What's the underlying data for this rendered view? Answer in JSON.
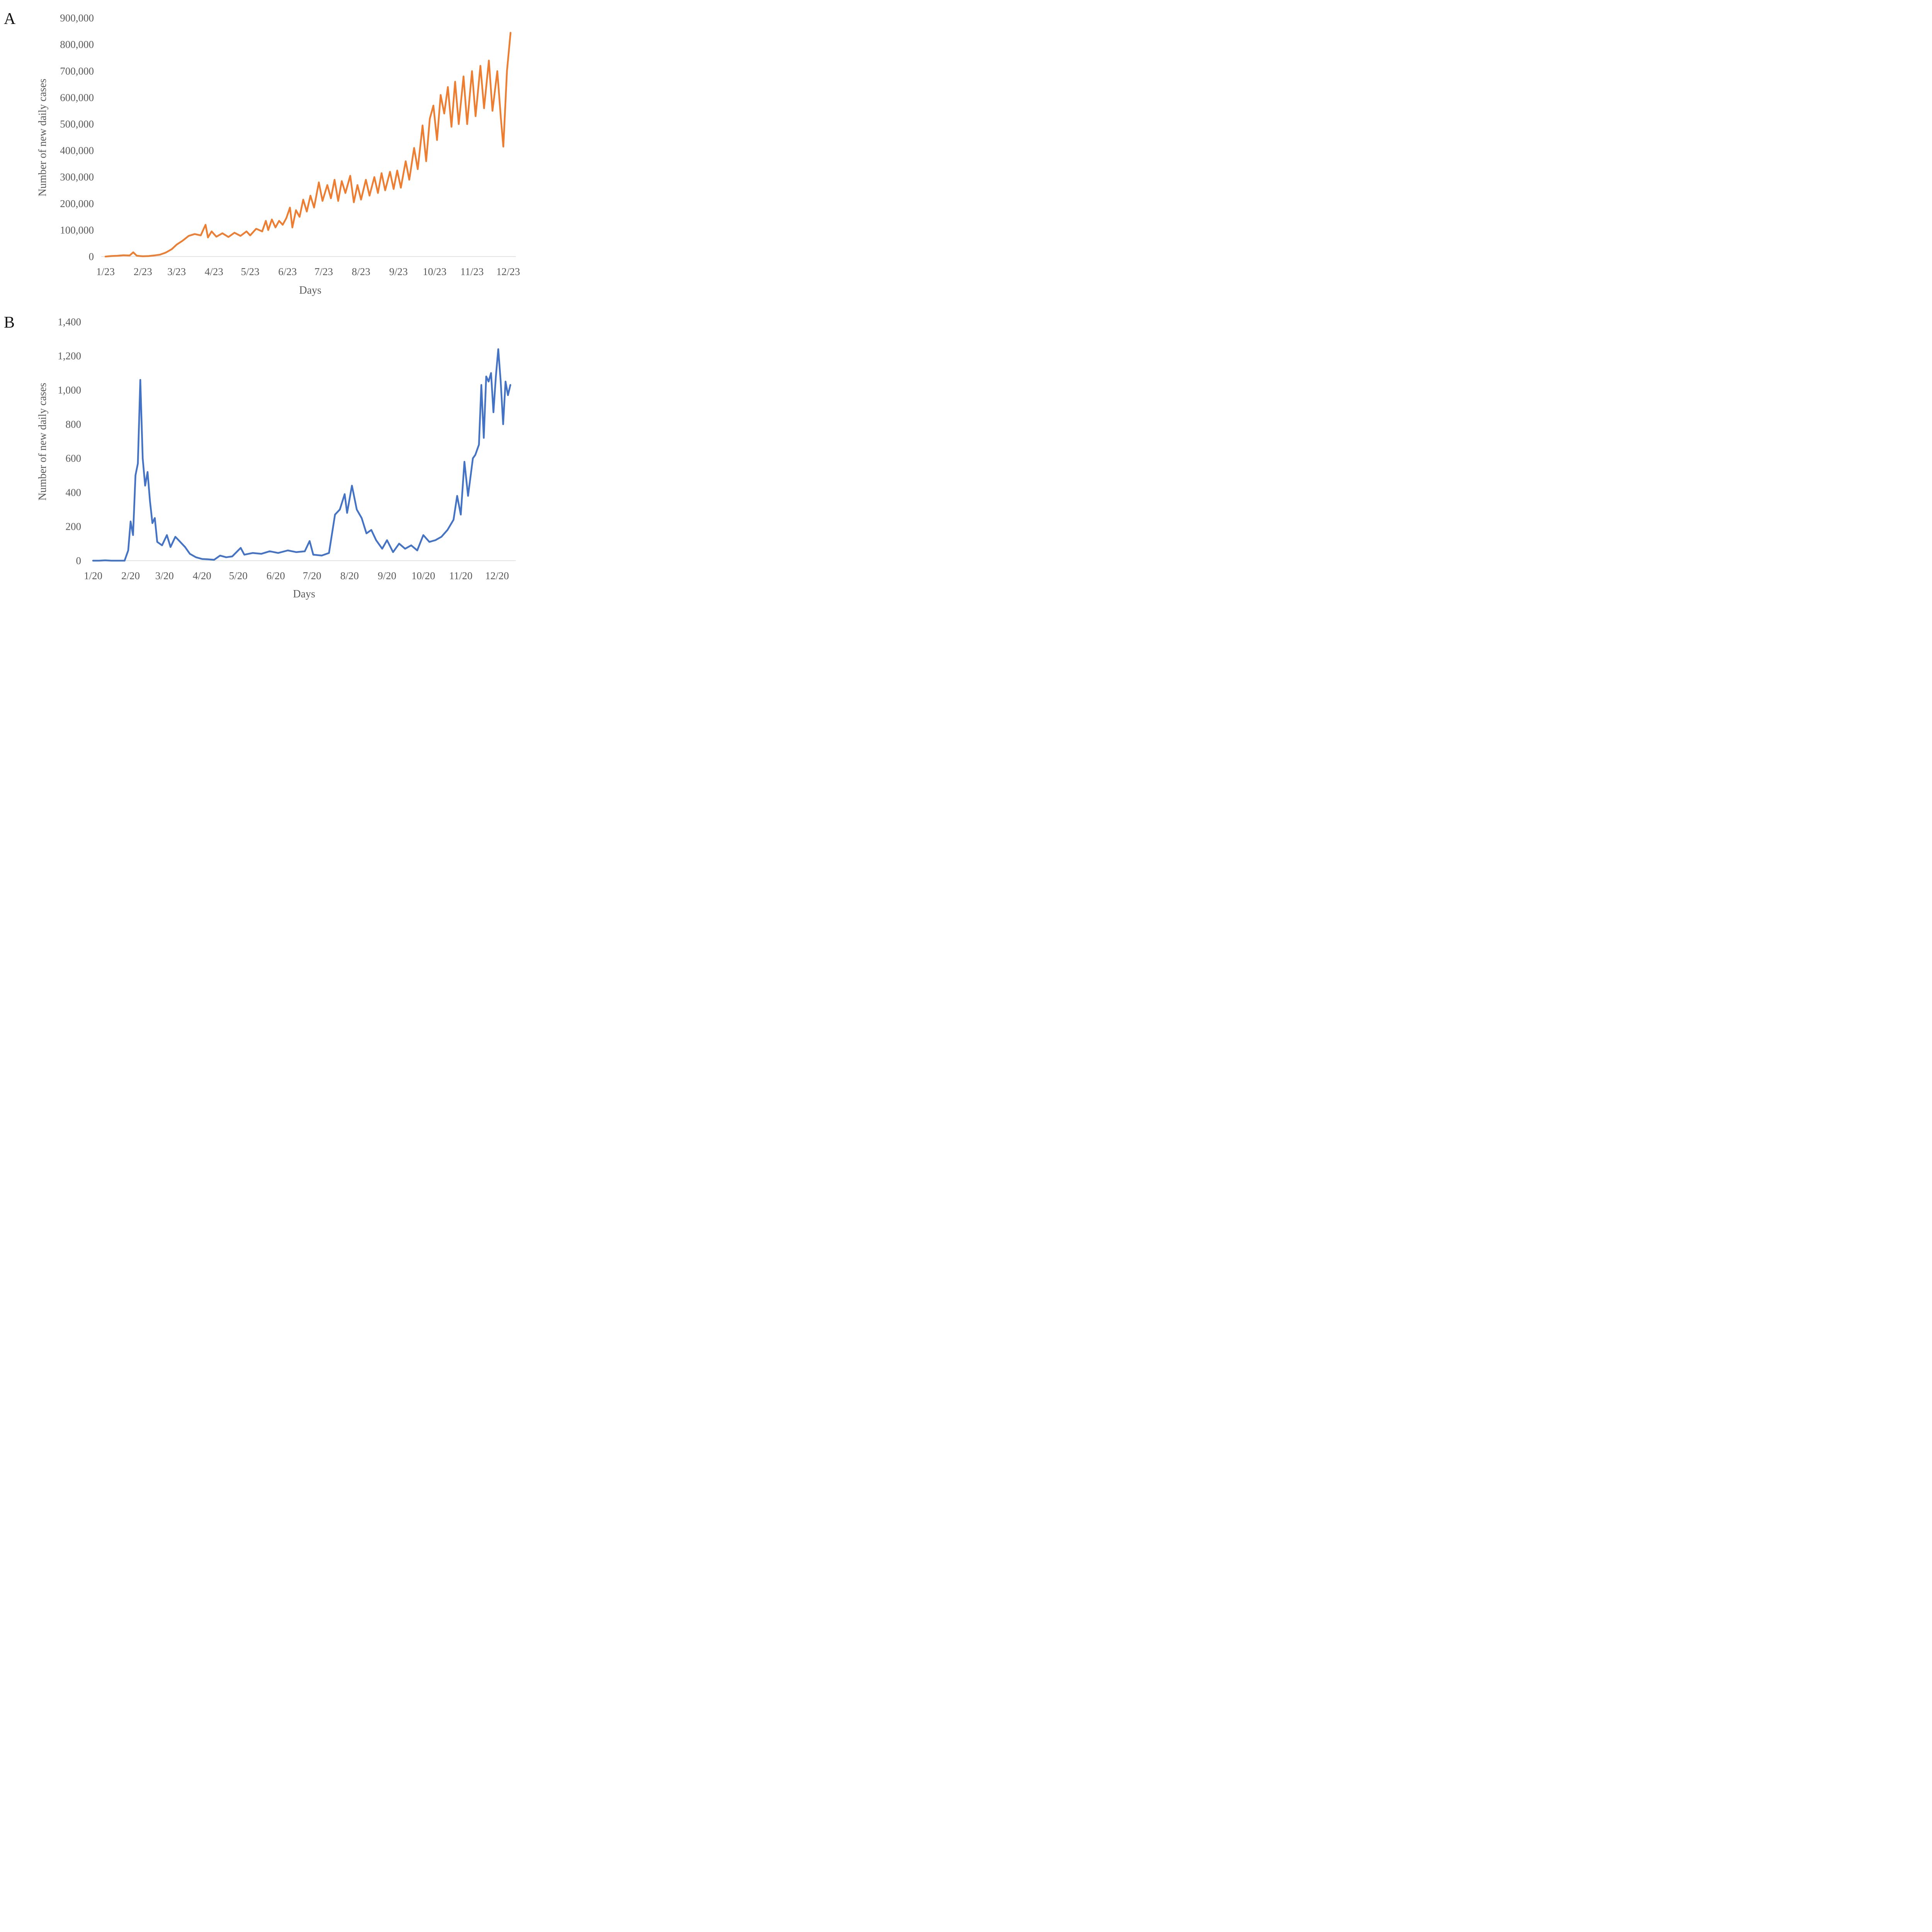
{
  "panels": [
    {
      "letter": "A",
      "chart_data": {
        "type": "line",
        "title": "",
        "xlabel": "Days",
        "ylabel": "Number of new daily cases",
        "x_tick_labels": [
          "1/23",
          "2/23",
          "3/23",
          "4/23",
          "5/23",
          "6/23",
          "7/23",
          "8/23",
          "9/23",
          "10/23",
          "11/23",
          "12/23"
        ],
        "y_tick_labels": [
          "0",
          "100,000",
          "200,000",
          "300,000",
          "400,000",
          "500,000",
          "600,000",
          "700,000",
          "800,000",
          "900,000"
        ],
        "ylim": [
          0,
          900000
        ],
        "grid": false,
        "legend": "none",
        "series": [
          {
            "color": "#ED7D31",
            "points": [
              [
                "1/23",
                0
              ],
              [
                "1/28",
                2000
              ],
              [
                "2/2",
                3000
              ],
              [
                "2/7",
                5000
              ],
              [
                "2/12",
                4000
              ],
              [
                "2/15",
                16000
              ],
              [
                "2/18",
                3000
              ],
              [
                "2/23",
                1000
              ],
              [
                "2/28",
                2000
              ],
              [
                "3/4",
                4000
              ],
              [
                "3/9",
                7000
              ],
              [
                "3/14",
                15000
              ],
              [
                "3/19",
                28000
              ],
              [
                "3/23",
                45000
              ],
              [
                "3/28",
                60000
              ],
              [
                "4/2",
                78000
              ],
              [
                "4/7",
                85000
              ],
              [
                "4/12",
                80000
              ],
              [
                "4/16",
                120000
              ],
              [
                "4/18",
                72000
              ],
              [
                "4/21",
                95000
              ],
              [
                "4/25",
                75000
              ],
              [
                "4/30",
                88000
              ],
              [
                "5/5",
                74000
              ],
              [
                "5/10",
                90000
              ],
              [
                "5/15",
                78000
              ],
              [
                "5/20",
                95000
              ],
              [
                "5/23",
                80000
              ],
              [
                "5/28",
                105000
              ],
              [
                "6/2",
                95000
              ],
              [
                "6/5",
                135000
              ],
              [
                "6/7",
                100000
              ],
              [
                "6/10",
                140000
              ],
              [
                "6/13",
                110000
              ],
              [
                "6/16",
                135000
              ],
              [
                "6/19",
                120000
              ],
              [
                "6/22",
                145000
              ],
              [
                "6/25",
                185000
              ],
              [
                "6/27",
                110000
              ],
              [
                "6/30",
                175000
              ],
              [
                "7/3",
                150000
              ],
              [
                "7/6",
                215000
              ],
              [
                "7/9",
                170000
              ],
              [
                "7/12",
                230000
              ],
              [
                "7/15",
                185000
              ],
              [
                "7/19",
                280000
              ],
              [
                "7/22",
                210000
              ],
              [
                "7/26",
                270000
              ],
              [
                "7/29",
                220000
              ],
              [
                "8/1",
                290000
              ],
              [
                "8/4",
                210000
              ],
              [
                "8/7",
                285000
              ],
              [
                "8/10",
                240000
              ],
              [
                "8/14",
                305000
              ],
              [
                "8/17",
                205000
              ],
              [
                "8/20",
                270000
              ],
              [
                "8/23",
                215000
              ],
              [
                "8/27",
                290000
              ],
              [
                "8/30",
                230000
              ],
              [
                "9/3",
                300000
              ],
              [
                "9/6",
                240000
              ],
              [
                "9/9",
                315000
              ],
              [
                "9/12",
                250000
              ],
              [
                "9/16",
                320000
              ],
              [
                "9/19",
                255000
              ],
              [
                "9/22",
                325000
              ],
              [
                "9/25",
                260000
              ],
              [
                "9/29",
                360000
              ],
              [
                "10/2",
                290000
              ],
              [
                "10/6",
                410000
              ],
              [
                "10/9",
                330000
              ],
              [
                "10/13",
                495000
              ],
              [
                "10/16",
                360000
              ],
              [
                "10/19",
                520000
              ],
              [
                "10/22",
                570000
              ],
              [
                "10/25",
                440000
              ],
              [
                "10/28",
                610000
              ],
              [
                "10/31",
                540000
              ],
              [
                "11/3",
                640000
              ],
              [
                "11/6",
                490000
              ],
              [
                "11/9",
                660000
              ],
              [
                "11/12",
                500000
              ],
              [
                "11/16",
                680000
              ],
              [
                "11/19",
                500000
              ],
              [
                "11/23",
                700000
              ],
              [
                "11/26",
                530000
              ],
              [
                "11/30",
                720000
              ],
              [
                "12/3",
                560000
              ],
              [
                "12/7",
                740000
              ],
              [
                "12/10",
                550000
              ],
              [
                "12/14",
                700000
              ],
              [
                "12/17",
                520000
              ],
              [
                "12/19",
                415000
              ],
              [
                "12/22",
                700000
              ],
              [
                "12/25",
                845000
              ]
            ]
          }
        ]
      }
    },
    {
      "letter": "B",
      "chart_data": {
        "type": "line",
        "title": "",
        "xlabel": "Days",
        "ylabel": "Number of new daily cases",
        "x_tick_labels": [
          "1/20",
          "2/20",
          "3/20",
          "4/20",
          "5/20",
          "6/20",
          "7/20",
          "8/20",
          "9/20",
          "10/20",
          "11/20",
          "12/20"
        ],
        "y_tick_labels": [
          "0",
          "200",
          "400",
          "600",
          "800",
          "1,000",
          "1,200",
          "1,400"
        ],
        "ylim": [
          0,
          1400
        ],
        "grid": false,
        "legend": "none",
        "series": [
          {
            "color": "#4472C4",
            "points": [
              [
                "1/20",
                0
              ],
              [
                "1/25",
                0
              ],
              [
                "1/30",
                2
              ],
              [
                "2/4",
                0
              ],
              [
                "2/9",
                0
              ],
              [
                "2/15",
                0
              ],
              [
                "2/18",
                60
              ],
              [
                "2/20",
                230
              ],
              [
                "2/22",
                150
              ],
              [
                "2/24",
                500
              ],
              [
                "2/26",
                570
              ],
              [
                "2/28",
                1060
              ],
              [
                "3/2",
                600
              ],
              [
                "3/4",
                440
              ],
              [
                "3/6",
                520
              ],
              [
                "3/8",
                350
              ],
              [
                "3/10",
                220
              ],
              [
                "3/12",
                250
              ],
              [
                "3/14",
                110
              ],
              [
                "3/18",
                90
              ],
              [
                "3/22",
                150
              ],
              [
                "3/25",
                80
              ],
              [
                "3/29",
                140
              ],
              [
                "4/2",
                110
              ],
              [
                "4/6",
                80
              ],
              [
                "4/10",
                40
              ],
              [
                "4/15",
                20
              ],
              [
                "4/20",
                10
              ],
              [
                "4/25",
                8
              ],
              [
                "4/30",
                5
              ],
              [
                "5/5",
                30
              ],
              [
                "5/10",
                20
              ],
              [
                "5/15",
                25
              ],
              [
                "5/22",
                75
              ],
              [
                "5/25",
                35
              ],
              [
                "6/1",
                45
              ],
              [
                "6/8",
                40
              ],
              [
                "6/15",
                55
              ],
              [
                "6/22",
                45
              ],
              [
                "6/30",
                60
              ],
              [
                "7/7",
                50
              ],
              [
                "7/14",
                55
              ],
              [
                "7/18",
                115
              ],
              [
                "7/21",
                35
              ],
              [
                "7/28",
                30
              ],
              [
                "8/3",
                45
              ],
              [
                "8/8",
                270
              ],
              [
                "8/12",
                300
              ],
              [
                "8/16",
                390
              ],
              [
                "8/18",
                280
              ],
              [
                "8/22",
                440
              ],
              [
                "8/26",
                300
              ],
              [
                "8/30",
                250
              ],
              [
                "9/3",
                160
              ],
              [
                "9/7",
                180
              ],
              [
                "9/11",
                120
              ],
              [
                "9/16",
                70
              ],
              [
                "9/20",
                120
              ],
              [
                "9/25",
                50
              ],
              [
                "9/30",
                100
              ],
              [
                "10/5",
                70
              ],
              [
                "10/10",
                90
              ],
              [
                "10/15",
                60
              ],
              [
                "10/20",
                150
              ],
              [
                "10/25",
                110
              ],
              [
                "10/30",
                120
              ],
              [
                "11/4",
                140
              ],
              [
                "11/9",
                180
              ],
              [
                "11/14",
                240
              ],
              [
                "11/17",
                380
              ],
              [
                "11/20",
                270
              ],
              [
                "11/23",
                580
              ],
              [
                "11/26",
                380
              ],
              [
                "11/30",
                600
              ],
              [
                "12/2",
                620
              ],
              [
                "12/5",
                680
              ],
              [
                "12/7",
                1030
              ],
              [
                "12/9",
                720
              ],
              [
                "12/11",
                1080
              ],
              [
                "12/13",
                1050
              ],
              [
                "12/15",
                1100
              ],
              [
                "12/17",
                870
              ],
              [
                "12/19",
                1080
              ],
              [
                "12/21",
                1240
              ],
              [
                "12/23",
                1050
              ],
              [
                "12/25",
                800
              ],
              [
                "12/27",
                1050
              ],
              [
                "12/29",
                970
              ],
              [
                "12/31",
                1030
              ]
            ]
          }
        ]
      }
    }
  ]
}
